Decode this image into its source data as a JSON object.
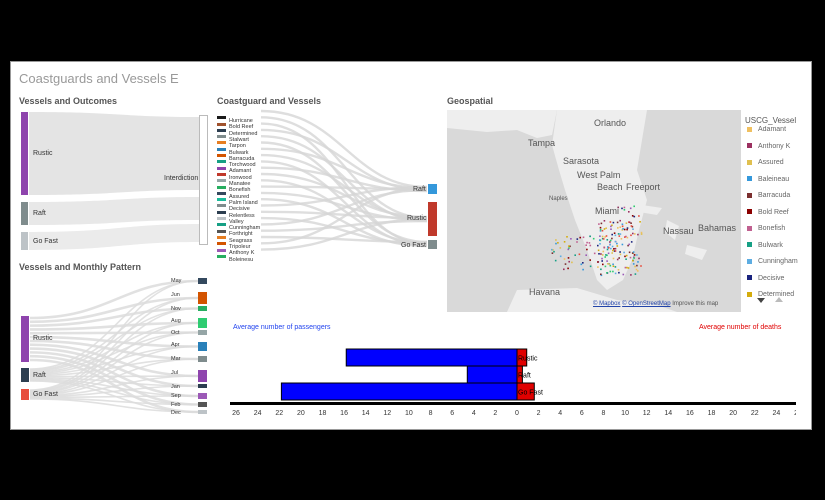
{
  "page": {
    "title": "Coastguards and Vessels E"
  },
  "panels": {
    "vessels_outcomes": "Vessels and Outcomes",
    "coastguard_vessels": "Coastguard and Vessels",
    "monthly_pattern": "Vessels and Monthly Pattern",
    "geospatial": "Geospatial"
  },
  "outcomes_sankey": {
    "vessel_types": [
      {
        "label": "Rustic",
        "color": "#8e44ad"
      },
      {
        "label": "Raft",
        "color": "#7f8c8d"
      },
      {
        "label": "Go Fast",
        "color": "#bdc3c7"
      }
    ],
    "outcome": "Interdiction"
  },
  "coastguard_list": [
    {
      "label": "Hurricane",
      "color": "#1a1a1a"
    },
    {
      "label": "Bold Reef",
      "color": "#a0522d"
    },
    {
      "label": "Determined",
      "color": "#2c3e50"
    },
    {
      "label": "Stalwart",
      "color": "#7f8c8d"
    },
    {
      "label": "Tarpon",
      "color": "#e67e22"
    },
    {
      "label": "Bulwark",
      "color": "#2980b9"
    },
    {
      "label": "Barracuda",
      "color": "#d35400"
    },
    {
      "label": "Torchwood",
      "color": "#16a085"
    },
    {
      "label": "Adamant",
      "color": "#8e44ad"
    },
    {
      "label": "Ironwood",
      "color": "#c0392b"
    },
    {
      "label": "Manatee",
      "color": "#95a5a6"
    },
    {
      "label": "Bonefish",
      "color": "#27ae60"
    },
    {
      "label": "Assured",
      "color": "#34495e"
    },
    {
      "label": "Palm Island",
      "color": "#1abc9c"
    },
    {
      "label": "Decisive",
      "color": "#7f8c8d"
    },
    {
      "label": "Relentless",
      "color": "#2c3e50"
    },
    {
      "label": "Valley",
      "color": "#bdc3c7"
    },
    {
      "label": "Cunningham",
      "color": "#16a085"
    },
    {
      "label": "Forthright",
      "color": "#555555"
    },
    {
      "label": "Seagrass",
      "color": "#e67e22"
    },
    {
      "label": "Tripoleur",
      "color": "#d35400"
    },
    {
      "label": "Anthony K",
      "color": "#9b59b6"
    },
    {
      "label": "Boleinesu",
      "color": "#27ae60"
    }
  ],
  "coastguard_targets": [
    {
      "label": "Raft",
      "color": "#3498db"
    },
    {
      "label": "Rustic",
      "color": "#c0392b"
    },
    {
      "label": "Go Fast",
      "color": "#7f8c8d"
    }
  ],
  "monthly_sankey": {
    "vessel_types": [
      {
        "label": "Rustic",
        "color": "#8e44ad"
      },
      {
        "label": "Raft",
        "color": "#2c3e50"
      },
      {
        "label": "Go Fast",
        "color": "#e74c3c"
      }
    ],
    "months": [
      {
        "label": "May",
        "color": "#34495e"
      },
      {
        "label": "Jun",
        "color": "#d35400"
      },
      {
        "label": "Nov",
        "color": "#27ae60"
      },
      {
        "label": "Aug",
        "color": "#2ecc71"
      },
      {
        "label": "Oct",
        "color": "#95a5a6"
      },
      {
        "label": "Apr",
        "color": "#2980b9"
      },
      {
        "label": "Mar",
        "color": "#7f8c8d"
      },
      {
        "label": "Jul",
        "color": "#8e44ad"
      },
      {
        "label": "Jan",
        "color": "#2c3e50"
      },
      {
        "label": "Sep",
        "color": "#9b59b6"
      },
      {
        "label": "Feb",
        "color": "#555555"
      },
      {
        "label": "Dec",
        "color": "#bdc3c7"
      }
    ]
  },
  "map": {
    "cities": [
      "Orlando",
      "Tampa",
      "Sarasota",
      "West Palm",
      "Beach",
      "Freeport",
      "Naples",
      "Miami",
      "Nassau",
      "Bahamas",
      "Havana"
    ],
    "attribution": {
      "mapbox": "© Mapbox",
      "osm": "© OpenStreetMap",
      "improve": "Improve this map"
    }
  },
  "legend": {
    "title": "USCG_Vessel",
    "items": [
      {
        "label": "Adamant",
        "color": "#f0c060"
      },
      {
        "label": "Anthony K",
        "color": "#9b3060"
      },
      {
        "label": "Assured",
        "color": "#e0c050"
      },
      {
        "label": "Baleineau",
        "color": "#3498db"
      },
      {
        "label": "Barracuda",
        "color": "#7b2f2f"
      },
      {
        "label": "Bold Reef",
        "color": "#8b0000"
      },
      {
        "label": "Bonefish",
        "color": "#c06090"
      },
      {
        "label": "Bulwark",
        "color": "#16a085"
      },
      {
        "label": "Cunningham",
        "color": "#5dade2"
      },
      {
        "label": "Decisive",
        "color": "#1a237e"
      },
      {
        "label": "Determined",
        "color": "#d4ac0d"
      }
    ]
  },
  "chart_data": {
    "type": "bar",
    "categories": [
      "Rustic",
      "Raft",
      "Go Fast"
    ],
    "series": [
      {
        "name": "Average number of passengers",
        "values": [
          15.8,
          4.6,
          21.8
        ],
        "color": "#0000ff"
      },
      {
        "name": "Average number of deaths",
        "values": [
          0.9,
          0.5,
          1.6
        ],
        "color": "#e00000"
      }
    ],
    "xlim": [
      -26,
      26
    ],
    "ticks": [
      "26",
      "24",
      "22",
      "20",
      "18",
      "16",
      "14",
      "12",
      "10",
      "8",
      "6",
      "4",
      "2",
      "0",
      "2",
      "4",
      "6",
      "8",
      "10",
      "12",
      "14",
      "16",
      "18",
      "20",
      "22",
      "24",
      "26"
    ],
    "legend": {
      "left": "Average number of passengers",
      "right": "Average number of deaths"
    }
  }
}
